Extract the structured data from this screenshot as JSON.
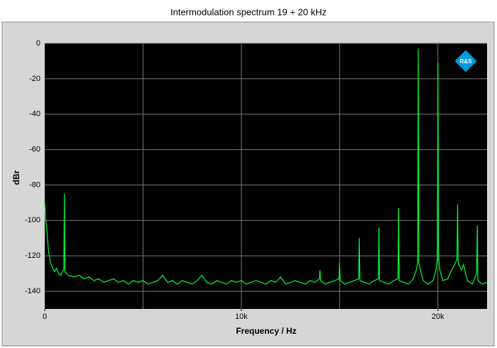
{
  "chart_data": {
    "type": "line",
    "title": "Intermodulation spectrum 19 + 20 kHz",
    "xlabel": "Frequency / Hz",
    "ylabel": "dBr",
    "logo": "R&S",
    "xlim": [
      0,
      22500
    ],
    "ylim": [
      -150,
      0
    ],
    "xticks": [
      0,
      {
        "value": 10000,
        "label": "10k"
      },
      {
        "value": 20000,
        "label": "20k"
      }
    ],
    "xgrid_lines": [
      5000,
      10000,
      15000,
      20000
    ],
    "yticks": [
      0,
      -20,
      -40,
      -60,
      -80,
      -100,
      -120,
      -140
    ],
    "grid": true,
    "series": [
      {
        "color": "#00ff33",
        "x": [
          0,
          50,
          100,
          150,
          200,
          300,
          400,
          500,
          600,
          700,
          800,
          900,
          970,
          1000,
          1030,
          1200,
          1500,
          1750,
          2000,
          2250,
          2500,
          2750,
          3000,
          3250,
          3500,
          3750,
          4000,
          4250,
          4500,
          4750,
          5000,
          5250,
          5500,
          5750,
          6000,
          6250,
          6500,
          6750,
          7000,
          7250,
          7500,
          7750,
          8000,
          8250,
          8500,
          8750,
          9000,
          9250,
          9500,
          9750,
          10000,
          10250,
          10500,
          10750,
          11000,
          11250,
          11500,
          11750,
          12000,
          12250,
          12500,
          12750,
          13000,
          13250,
          13500,
          13750,
          13970,
          14000,
          14030,
          14250,
          14500,
          14750,
          14970,
          15000,
          15030,
          15250,
          15500,
          15750,
          15970,
          16000,
          16030,
          16250,
          16500,
          16750,
          16970,
          17000,
          17030,
          17250,
          17500,
          17750,
          17970,
          18000,
          18030,
          18250,
          18500,
          18750,
          18900,
          18970,
          19000,
          19030,
          19100,
          19250,
          19500,
          19750,
          19900,
          19970,
          20000,
          20030,
          20100,
          20250,
          20500,
          20700,
          20800,
          20970,
          21000,
          21030,
          21200,
          21300,
          21500,
          21750,
          21970,
          22000,
          22030,
          22250,
          22500
        ],
        "values": [
          -90,
          -100,
          -104,
          -112,
          -118,
          -124,
          -127,
          -129,
          -127,
          -130,
          -131,
          -129,
          -128,
          -85,
          -129,
          -131,
          -132,
          -131,
          -133,
          -132,
          -134,
          -133,
          -135,
          -134,
          -133,
          -135,
          -134,
          -136,
          -134,
          -135,
          -134,
          -136,
          -135,
          -134,
          -131,
          -135,
          -134,
          -136,
          -134,
          -135,
          -136,
          -134,
          -131,
          -135,
          -136,
          -134,
          -135,
          -136,
          -134,
          -135,
          -134,
          -136,
          -135,
          -134,
          -135,
          -136,
          -134,
          -135,
          -132,
          -136,
          -135,
          -134,
          -135,
          -136,
          -134,
          -135,
          -133,
          -128,
          -134,
          -136,
          -135,
          -134,
          -133,
          -124,
          -134,
          -136,
          -135,
          -134,
          -133,
          -110,
          -134,
          -135,
          -136,
          -134,
          -133,
          -104,
          -134,
          -135,
          -136,
          -134,
          -133,
          -93,
          -134,
          -135,
          -136,
          -133,
          -128,
          -124,
          -3,
          -124,
          -128,
          -134,
          -136,
          -134,
          -128,
          -122,
          -11,
          -120,
          -128,
          -134,
          -133,
          -128,
          -126,
          -122,
          -91,
          -124,
          -128,
          -125,
          -134,
          -136,
          -130,
          -103,
          -134,
          -136,
          -135
        ]
      }
    ]
  }
}
